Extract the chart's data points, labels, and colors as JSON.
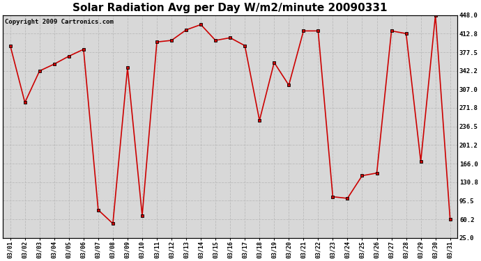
{
  "title": "Solar Radiation Avg per Day W/m2/minute 20090331",
  "copyright": "Copyright 2009 Cartronics.com",
  "dates": [
    "03/01",
    "03/02",
    "03/03",
    "03/04",
    "03/05",
    "03/06",
    "03/07",
    "03/08",
    "03/09",
    "03/10",
    "03/11",
    "03/12",
    "03/13",
    "03/14",
    "03/15",
    "03/16",
    "03/17",
    "03/18",
    "03/19",
    "03/20",
    "03/21",
    "03/22",
    "03/23",
    "03/24",
    "03/25",
    "03/26",
    "03/27",
    "03/28",
    "03/29",
    "03/30",
    "03/31"
  ],
  "values": [
    390,
    282,
    342,
    355,
    370,
    383,
    78,
    52,
    348,
    67,
    397,
    400,
    420,
    430,
    400,
    405,
    390,
    248,
    358,
    315,
    418,
    418,
    103,
    100,
    143,
    148,
    418,
    413,
    170,
    448,
    60
  ],
  "line_color": "#cc0000",
  "marker_color": "#000000",
  "bg_color": "#ffffff",
  "plot_bg_color": "#d8d8d8",
  "grid_color": "#bbbbbb",
  "ylim_min": 25.0,
  "ylim_max": 448.0,
  "yticks": [
    25.0,
    60.2,
    95.5,
    130.8,
    166.0,
    201.2,
    236.5,
    271.8,
    307.0,
    342.2,
    377.5,
    412.8,
    448.0
  ],
  "title_fontsize": 11,
  "copyright_fontsize": 6.5,
  "figwidth": 6.9,
  "figheight": 3.75,
  "dpi": 100
}
